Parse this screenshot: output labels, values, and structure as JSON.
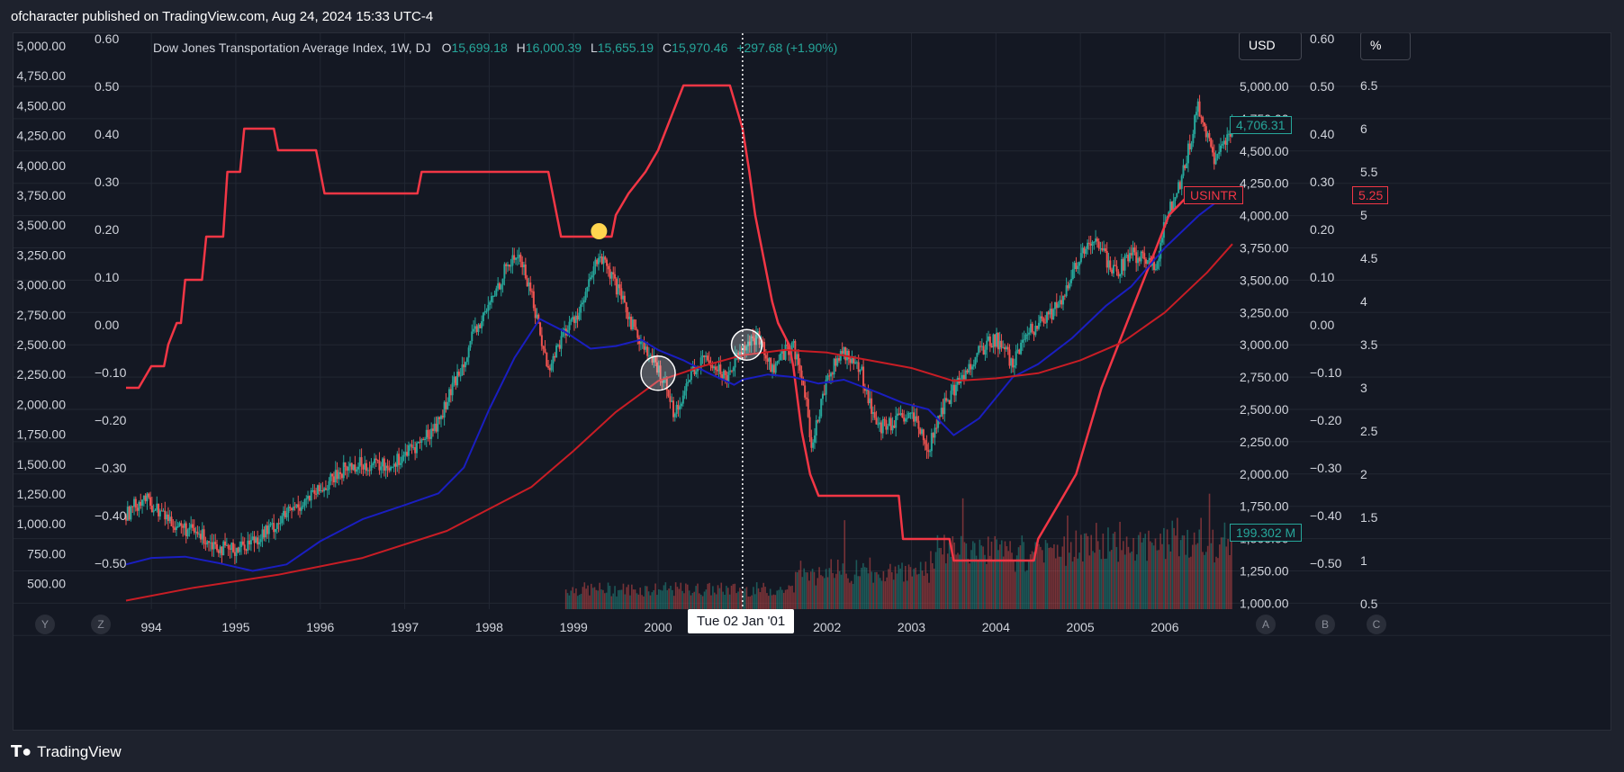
{
  "header": {
    "text": "ofcharacter published on TradingView.com, Aug 24, 2024 15:33 UTC-4"
  },
  "footer": {
    "logo_text": "TradingView"
  },
  "legend": {
    "symbol": "Dow Jones Transportation Average Index, 1W, DJ",
    "o_label": "O",
    "o_value": "15,699.18",
    "h_label": "H",
    "h_value": "16,000.39",
    "l_label": "L",
    "l_value": "15,655.19",
    "c_label": "C",
    "c_value": "15,970.46",
    "change": "+297.68 (+1.90%)"
  },
  "buttons": {
    "currency": "USD",
    "unit": "%"
  },
  "crosshair_date": "Tue 02 Jan '01",
  "tags": {
    "price": "4,706.31",
    "series_name": "USINTR",
    "rate": "5.25",
    "volume": "199.302 M"
  },
  "corner_letters": [
    "Y",
    "Z",
    "A",
    "B",
    "C"
  ],
  "colors": {
    "background": "#141823",
    "rate_line": "#f23645",
    "ma_short": "#1a1ec0",
    "ma_long": "#c81d25",
    "up": "#26a69a",
    "down": "#ef5350"
  },
  "chart_data": {
    "type": "line",
    "x_ticks": [
      "994",
      "1995",
      "1996",
      "1997",
      "1998",
      "1999",
      "2000",
      "2002",
      "2003",
      "2004",
      "2005",
      "2006"
    ],
    "x_range": [
      1993.7,
      2006.8
    ],
    "axes": {
      "left_outer": {
        "ticks": [
          "5,000.00",
          "4,750.00",
          "4,500.00",
          "4,250.00",
          "4,000.00",
          "3,750.00",
          "3,500.00",
          "3,250.00",
          "3,000.00",
          "2,750.00",
          "2,500.00",
          "2,250.00",
          "2,000.00",
          "1,750.00",
          "1,500.00",
          "1,250.00",
          "1,000.00",
          "750.00",
          "500.00"
        ]
      },
      "left_inner": {
        "ticks": [
          "0.60",
          "0.50",
          "0.40",
          "0.30",
          "0.20",
          "0.10",
          "0.00",
          "−0.10",
          "−0.20",
          "−0.30",
          "−0.40",
          "−0.50"
        ]
      },
      "right_price": {
        "ticks": [
          "5,000.00",
          "4,750.00",
          "4,500.00",
          "4,250.00",
          "4,000.00",
          "3,750.00",
          "3,500.00",
          "3,250.00",
          "3,000.00",
          "2,750.00",
          "2,500.00",
          "2,250.00",
          "2,000.00",
          "1,750.00",
          "1,500.00",
          "1,250.00",
          "1,000.00"
        ]
      },
      "right_osc": {
        "ticks": [
          "0.60",
          "0.50",
          "0.40",
          "0.30",
          "0.20",
          "0.10",
          "0.00",
          "−0.10",
          "−0.20",
          "−0.30",
          "−0.40",
          "−0.50"
        ]
      },
      "right_rate": {
        "ticks": [
          "6.5",
          "6",
          "5.5",
          "5",
          "4.5",
          "4",
          "3.5",
          "3",
          "2.5",
          "2",
          "1.5",
          "1",
          "0.5"
        ]
      }
    },
    "price_ylim": [
      1000,
      5000
    ],
    "rate_ylim": [
      0.5,
      6.5
    ],
    "series": [
      {
        "name": "USINTR",
        "axis": "rate",
        "points": [
          [
            1993.7,
            3
          ],
          [
            1993.85,
            3
          ],
          [
            1994.0,
            3.25
          ],
          [
            1994.15,
            3.25
          ],
          [
            1994.2,
            3.5
          ],
          [
            1994.3,
            3.75
          ],
          [
            1994.35,
            3.75
          ],
          [
            1994.4,
            4.25
          ],
          [
            1994.6,
            4.25
          ],
          [
            1994.65,
            4.75
          ],
          [
            1994.85,
            4.75
          ],
          [
            1994.9,
            5.5
          ],
          [
            1995.05,
            5.5
          ],
          [
            1995.1,
            6
          ],
          [
            1995.45,
            6
          ],
          [
            1995.5,
            5.75
          ],
          [
            1995.95,
            5.75
          ],
          [
            1996.05,
            5.25
          ],
          [
            1997.15,
            5.25
          ],
          [
            1997.2,
            5.5
          ],
          [
            1998.7,
            5.5
          ],
          [
            1998.75,
            5.25
          ],
          [
            1998.8,
            5
          ],
          [
            1998.85,
            4.75
          ],
          [
            1999.45,
            4.75
          ],
          [
            1999.5,
            5
          ],
          [
            1999.65,
            5.25
          ],
          [
            1999.85,
            5.5
          ],
          [
            2000.0,
            5.75
          ],
          [
            2000.1,
            6
          ],
          [
            2000.3,
            6.5
          ],
          [
            2000.85,
            6.5
          ],
          [
            2001.0,
            6
          ],
          [
            2001.08,
            5.5
          ],
          [
            2001.15,
            5
          ],
          [
            2001.25,
            4.5
          ],
          [
            2001.35,
            4
          ],
          [
            2001.42,
            3.75
          ],
          [
            2001.55,
            3.5
          ],
          [
            2001.6,
            3.25
          ],
          [
            2001.7,
            2.5
          ],
          [
            2001.8,
            2
          ],
          [
            2001.9,
            1.75
          ],
          [
            2002.85,
            1.75
          ],
          [
            2002.9,
            1.25
          ],
          [
            2003.45,
            1.25
          ],
          [
            2003.5,
            1
          ],
          [
            2004.45,
            1
          ],
          [
            2004.5,
            1.25
          ],
          [
            2004.65,
            1.5
          ],
          [
            2004.8,
            1.75
          ],
          [
            2004.95,
            2
          ],
          [
            2005.1,
            2.5
          ],
          [
            2005.25,
            3
          ],
          [
            2005.45,
            3.5
          ],
          [
            2005.65,
            4
          ],
          [
            2005.85,
            4.5
          ],
          [
            2006.05,
            5
          ],
          [
            2006.3,
            5.25
          ],
          [
            2006.8,
            5.25
          ]
        ]
      },
      {
        "name": "",
        "axis": "price",
        "points": [
          [
            1993.7,
            1300
          ],
          [
            1994.0,
            1350
          ],
          [
            1994.4,
            1360
          ],
          [
            1994.8,
            1310
          ],
          [
            1995.2,
            1250
          ],
          [
            1995.6,
            1300
          ],
          [
            1996.0,
            1480
          ],
          [
            1996.5,
            1650
          ],
          [
            1997.0,
            1760
          ],
          [
            1997.4,
            1850
          ],
          [
            1997.7,
            2050
          ],
          [
            1998.0,
            2500
          ],
          [
            1998.3,
            2900
          ],
          [
            1998.6,
            3200
          ],
          [
            1998.9,
            3100
          ],
          [
            1999.2,
            2970
          ],
          [
            1999.5,
            2990
          ],
          [
            1999.8,
            3040
          ],
          [
            2000.0,
            2960
          ],
          [
            2000.3,
            2880
          ],
          [
            2000.6,
            2780
          ],
          [
            2000.9,
            2690
          ],
          [
            2001.0,
            2730
          ],
          [
            2001.3,
            2770
          ],
          [
            2001.6,
            2750
          ],
          [
            2001.9,
            2700
          ],
          [
            2002.2,
            2730
          ],
          [
            2002.6,
            2630
          ],
          [
            2002.9,
            2550
          ],
          [
            2003.2,
            2500
          ],
          [
            2003.5,
            2300
          ],
          [
            2003.8,
            2430
          ],
          [
            2004.2,
            2750
          ],
          [
            2004.5,
            2850
          ],
          [
            2004.9,
            3050
          ],
          [
            2005.3,
            3300
          ],
          [
            2005.6,
            3450
          ],
          [
            2006.0,
            3750
          ],
          [
            2006.4,
            4000
          ],
          [
            2006.8,
            4200
          ]
        ]
      },
      {
        "name": "",
        "axis": "price",
        "points": [
          [
            1993.7,
            1020
          ],
          [
            1994.5,
            1120
          ],
          [
            1995.5,
            1220
          ],
          [
            1996.5,
            1350
          ],
          [
            1997.5,
            1560
          ],
          [
            1998.5,
            1900
          ],
          [
            1999.0,
            2180
          ],
          [
            1999.5,
            2480
          ],
          [
            2000.0,
            2720
          ],
          [
            2000.5,
            2830
          ],
          [
            2001.0,
            2920
          ],
          [
            2001.5,
            2960
          ],
          [
            2002.0,
            2940
          ],
          [
            2002.5,
            2880
          ],
          [
            2003.0,
            2820
          ],
          [
            2003.5,
            2720
          ],
          [
            2004.0,
            2740
          ],
          [
            2004.5,
            2780
          ],
          [
            2005.0,
            2880
          ],
          [
            2005.5,
            3020
          ],
          [
            2006.0,
            3250
          ],
          [
            2006.5,
            3560
          ],
          [
            2006.8,
            3780
          ]
        ]
      }
    ],
    "price_path": [
      [
        1993.7,
        1680
      ],
      [
        1993.9,
        1820
      ],
      [
        1994.0,
        1760
      ],
      [
        1994.3,
        1600
      ],
      [
        1994.6,
        1520
      ],
      [
        1994.9,
        1400
      ],
      [
        1995.1,
        1450
      ],
      [
        1995.4,
        1570
      ],
      [
        1995.7,
        1740
      ],
      [
        1996.0,
        1870
      ],
      [
        1996.3,
        2050
      ],
      [
        1996.5,
        2080
      ],
      [
        1996.8,
        2060
      ],
      [
        1997.0,
        2150
      ],
      [
        1997.2,
        2250
      ],
      [
        1997.4,
        2400
      ],
      [
        1997.6,
        2720
      ],
      [
        1997.8,
        3050
      ],
      [
        1998.0,
        3300
      ],
      [
        1998.2,
        3600
      ],
      [
        1998.35,
        3700
      ],
      [
        1998.5,
        3400
      ],
      [
        1998.7,
        2800
      ],
      [
        1998.85,
        3050
      ],
      [
        1999.1,
        3300
      ],
      [
        1999.3,
        3700
      ],
      [
        1999.5,
        3450
      ],
      [
        1999.7,
        3150
      ],
      [
        1999.9,
        2900
      ],
      [
        2000.1,
        2700
      ],
      [
        2000.2,
        2450
      ],
      [
        2000.4,
        2800
      ],
      [
        2000.6,
        2900
      ],
      [
        2000.8,
        2750
      ],
      [
        2001.0,
        3000
      ],
      [
        2001.2,
        3050
      ],
      [
        2001.35,
        2800
      ],
      [
        2001.5,
        2950
      ],
      [
        2001.6,
        3000
      ],
      [
        2001.75,
        2600
      ],
      [
        2001.8,
        2200
      ],
      [
        2001.9,
        2450
      ],
      [
        2002.0,
        2750
      ],
      [
        2002.2,
        2950
      ],
      [
        2002.4,
        2800
      ],
      [
        2002.6,
        2350
      ],
      [
        2002.8,
        2400
      ],
      [
        2003.0,
        2450
      ],
      [
        2003.2,
        2200
      ],
      [
        2003.4,
        2550
      ],
      [
        2003.6,
        2750
      ],
      [
        2003.8,
        2950
      ],
      [
        2004.0,
        3050
      ],
      [
        2004.2,
        2850
      ],
      [
        2004.4,
        3100
      ],
      [
        2004.6,
        3200
      ],
      [
        2004.8,
        3350
      ],
      [
        2005.0,
        3700
      ],
      [
        2005.2,
        3800
      ],
      [
        2005.4,
        3550
      ],
      [
        2005.6,
        3700
      ],
      [
        2005.8,
        3650
      ],
      [
        2005.9,
        3600
      ],
      [
        2006.0,
        3950
      ],
      [
        2006.2,
        4300
      ],
      [
        2006.4,
        4850
      ],
      [
        2006.5,
        4600
      ],
      [
        2006.6,
        4400
      ],
      [
        2006.8,
        4700
      ]
    ]
  }
}
